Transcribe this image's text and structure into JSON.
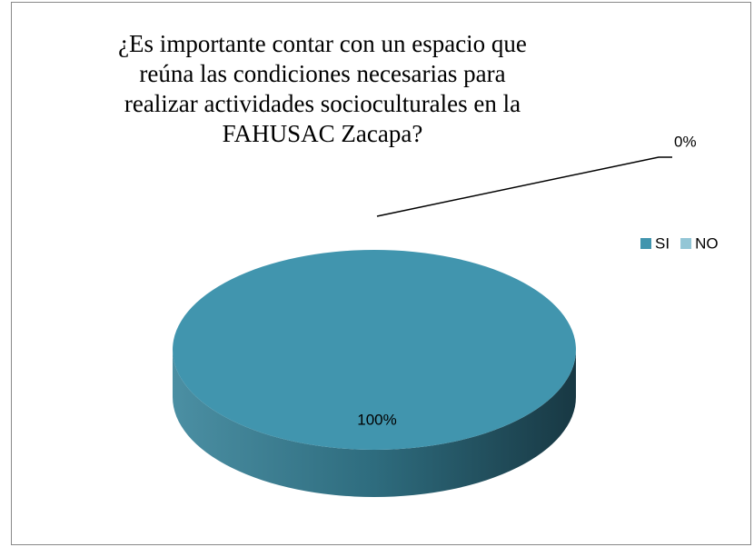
{
  "chart_data": {
    "type": "pie",
    "title": "¿Es importante contar con un espacio que reúna las condiciones necesarias para realizar actividades socioculturales en la FAHUSAC Zacapa?",
    "categories": [
      "SI",
      "NO"
    ],
    "values": [
      100,
      0
    ],
    "value_labels": [
      "100%",
      "0%"
    ],
    "colors": [
      "#4195ae",
      "#93c6d6"
    ],
    "legend": "right",
    "three_d": true
  }
}
